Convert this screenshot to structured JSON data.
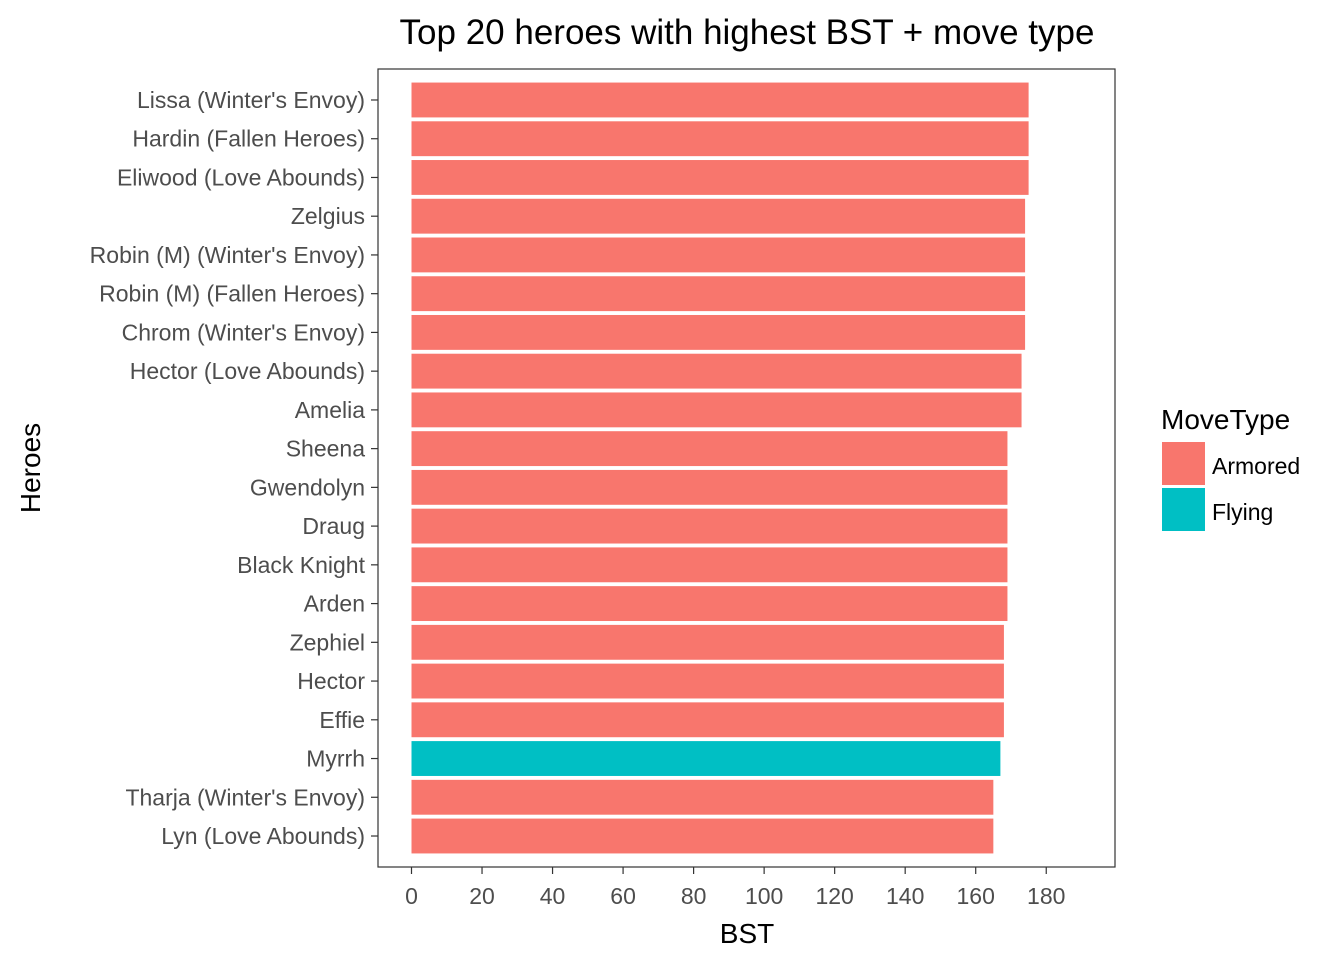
{
  "chart_data": {
    "type": "bar",
    "orientation": "horizontal",
    "title": "Top 20 heroes with highest BST + move type",
    "xlabel": "BST",
    "ylabel": "Heroes",
    "xlim": [
      -9.5,
      199.5
    ],
    "x_ticks": [
      0,
      20,
      40,
      60,
      80,
      100,
      120,
      140,
      160,
      180
    ],
    "grid": false,
    "legend": {
      "title": "MoveType",
      "position": "right",
      "entries": [
        {
          "name": "Armored",
          "color": "#F8766D"
        },
        {
          "name": "Flying",
          "color": "#00BFC4"
        }
      ]
    },
    "categories": [
      "Lissa (Winter's Envoy)",
      "Hardin (Fallen Heroes)",
      "Eliwood (Love Abounds)",
      "Zelgius",
      "Robin (M) (Winter's Envoy)",
      "Robin (M) (Fallen Heroes)",
      "Chrom (Winter's Envoy)",
      "Hector (Love Abounds)",
      "Amelia",
      "Sheena",
      "Gwendolyn",
      "Draug",
      "Black Knight",
      "Arden",
      "Zephiel",
      "Hector",
      "Effie",
      "Myrrh",
      "Tharja (Winter's Envoy)",
      "Lyn (Love Abounds)"
    ],
    "values": [
      175,
      175,
      175,
      174,
      174,
      174,
      174,
      173,
      173,
      169,
      169,
      169,
      169,
      169,
      168,
      168,
      168,
      167,
      165,
      165
    ],
    "move_types": [
      "Armored",
      "Armored",
      "Armored",
      "Armored",
      "Armored",
      "Armored",
      "Armored",
      "Armored",
      "Armored",
      "Armored",
      "Armored",
      "Armored",
      "Armored",
      "Armored",
      "Armored",
      "Armored",
      "Armored",
      "Flying",
      "Armored",
      "Armored"
    ]
  }
}
